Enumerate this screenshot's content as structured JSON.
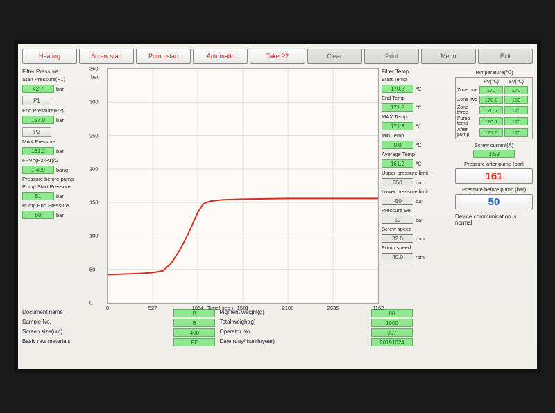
{
  "toolbar": {
    "heating": "Heating",
    "screw_start": "Screw start",
    "pump_start": "Pump start",
    "automatic": "Automatic",
    "take_p2": "Take P2",
    "clear": "Clear",
    "print": "Print",
    "menu": "Menu",
    "exit": "Exit"
  },
  "left": {
    "filter_pressure_title": "Filter Pressure",
    "start_pressure_label": "Start Pressure(P1)",
    "start_pressure_val": "42.7",
    "p1_btn": "P1",
    "end_pressure_label": "End Pressure(P2)",
    "end_pressure_val": "157.0",
    "p2_btn": "P2",
    "max_pressure_label": "MAX Pressure",
    "max_pressure_val": "161.2",
    "fpv_label": "FPV=(P2-P1)/G",
    "fpv_val": "1.429",
    "fpv_unit": "bar/g",
    "before_pump_label": "Pressure before pump",
    "pump_start_label": "Pump Start Pressure",
    "pump_start_val": "51",
    "pump_end_label": "Pump End Pressure",
    "pump_end_val": "50",
    "bar_unit": "bar"
  },
  "chart": {
    "type": "line",
    "x_title": "Time( sec )",
    "xlim": [
      0,
      3162
    ],
    "ylim": [
      0,
      350
    ],
    "xticks": [
      0,
      527,
      1054,
      1581,
      2108,
      2635,
      3162
    ],
    "yticks": [
      0,
      50,
      100,
      150,
      200,
      250,
      300,
      350
    ],
    "y_unit": "bar",
    "line_color": "#d83020",
    "grid_color": "#e2e0da",
    "bg_color": "#fcfbf7",
    "line_width": 2,
    "points": [
      [
        0,
        42
      ],
      [
        200,
        43
      ],
      [
        400,
        44
      ],
      [
        527,
        45
      ],
      [
        650,
        48
      ],
      [
        750,
        60
      ],
      [
        850,
        80
      ],
      [
        950,
        105
      ],
      [
        1054,
        135
      ],
      [
        1120,
        148
      ],
      [
        1200,
        152
      ],
      [
        1350,
        154
      ],
      [
        1581,
        155
      ],
      [
        2108,
        156
      ],
      [
        2635,
        156
      ],
      [
        3162,
        156
      ]
    ]
  },
  "right": {
    "filter_temp_title": "Filter Temp",
    "start_temp_label": "Start Temp",
    "start_temp_val": "170.3",
    "end_temp_label": "End Temp",
    "end_temp_val": "171.2",
    "max_temp_label": "MAX Temp",
    "max_temp_val": "171.3",
    "min_temp_label": "Min Temp",
    "min_temp_val": "0.0",
    "avg_temp_label": "Average Temp",
    "avg_temp_val": "161.2",
    "upper_limit_label": "Upper pressure limit",
    "upper_limit_val": "350",
    "lower_limit_label": "Lower pressure limit",
    "lower_limit_val": "-50",
    "pressure_set_label": "Pressure Set",
    "pressure_set_val": "50",
    "screw_speed_label": "Screw speed",
    "screw_speed_val": "32.0",
    "pump_speed_label": "Pump speed",
    "pump_speed_val": "40.0",
    "rpm": "rpm",
    "c_unit": "℃"
  },
  "temps": {
    "header_title": "Temperature(℃)",
    "pv_head": "PV(℃)",
    "sv_head": "SV(℃)",
    "rows": [
      {
        "zone": "Zone one",
        "pv": "170",
        "sv": "170"
      },
      {
        "zone": "Zone two",
        "pv": "170.0",
        "sv": "150"
      },
      {
        "zone": "Zone three",
        "pv": "170.7",
        "sv": "170"
      },
      {
        "zone": "Pump temp",
        "pv": "170.1",
        "sv": "170"
      },
      {
        "zone": "After pump",
        "pv": "171.5",
        "sv": "170"
      }
    ],
    "screw_current_label": "Screw current(A)",
    "screw_current_val": "3.59",
    "after_pump_label": "Pressure after pump (bar)",
    "after_pump_val": "161",
    "before_pump_label": "Pressure before pump (bar)",
    "before_pump_val": "50",
    "device_status": "Device communication is normal"
  },
  "info": {
    "doc_name_label": "Document name",
    "doc_name_val": "B",
    "sample_label": "Sample No.",
    "sample_val": "B",
    "screen_label": "Screen size(um)",
    "screen_val": "400",
    "raw_label": "Basic raw materials",
    "raw_val": "PE",
    "pigment_label": "Pigment weight(g)",
    "pigment_val": "80",
    "total_label": "Total weight(g)",
    "total_val": "1000",
    "operator_label": "Operator No.",
    "operator_val": "007",
    "date_label": "Date (day/month/year)",
    "date_val": "20191024"
  }
}
